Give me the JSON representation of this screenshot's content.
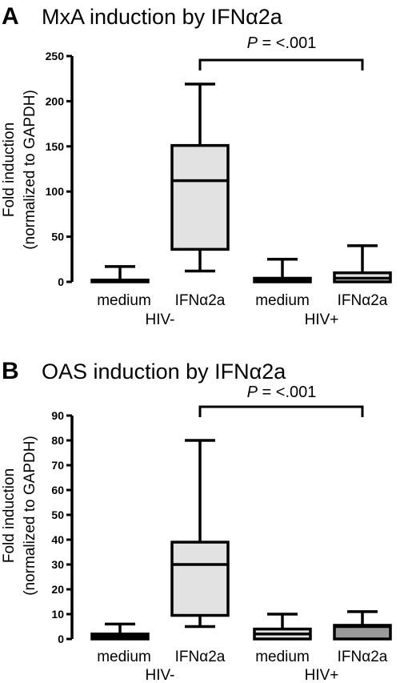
{
  "chart_data": [
    {
      "type": "box",
      "panel_letter": "A",
      "title": "MxA induction by IFNα2a",
      "ylabel_lines": [
        "Fold induction",
        "(normalized to GAPDH)"
      ],
      "ylim": [
        0,
        250
      ],
      "yticks": [
        0,
        50,
        100,
        150,
        200,
        250
      ],
      "categories": [
        "medium",
        "IFNα2a",
        "medium",
        "IFNα2a"
      ],
      "groups": [
        "HIV-",
        "HIV+"
      ],
      "boxes": [
        {
          "min": 0,
          "q1": 0,
          "median": 1,
          "q3": 2,
          "max": 17,
          "color": "#e2e2e2"
        },
        {
          "min": 12,
          "q1": 36,
          "median": 112,
          "q3": 151,
          "max": 219,
          "color": "#e2e2e2"
        },
        {
          "min": 0,
          "q1": 0,
          "median": 2,
          "q3": 4,
          "max": 25,
          "color": "#e2e2e2"
        },
        {
          "min": 0,
          "q1": 0,
          "median": 4,
          "q3": 10,
          "max": 40,
          "color": "#e2e2e2"
        }
      ],
      "annotation": {
        "p_symbol": "P",
        "text": " = <.001",
        "between": [
          1,
          3
        ]
      }
    },
    {
      "type": "box",
      "panel_letter": "B",
      "title": "OAS induction by IFNα2a",
      "ylabel_lines": [
        "Fold induction",
        "(normalized to GAPDH)"
      ],
      "ylim": [
        0,
        90
      ],
      "yticks": [
        0,
        10,
        20,
        30,
        40,
        50,
        60,
        70,
        80,
        90
      ],
      "categories": [
        "medium",
        "IFNα2a",
        "medium",
        "IFNα2a"
      ],
      "groups": [
        "HIV-",
        "HIV+"
      ],
      "boxes": [
        {
          "min": 0,
          "q1": 0,
          "median": 1,
          "q3": 2,
          "max": 6,
          "color": "#e2e2e2"
        },
        {
          "min": 5,
          "q1": 9.5,
          "median": 30,
          "q3": 39,
          "max": 80,
          "color": "#e2e2e2"
        },
        {
          "min": 0,
          "q1": 0,
          "median": 2,
          "q3": 4,
          "max": 10,
          "color": "#e2e2e2"
        },
        {
          "min": 0,
          "q1": 0,
          "median": 5,
          "q3": 5.5,
          "max": 11,
          "color": "#9a9a9a"
        }
      ],
      "annotation": {
        "p_symbol": "P",
        "text": " = <.001",
        "between": [
          1,
          3
        ]
      }
    }
  ]
}
